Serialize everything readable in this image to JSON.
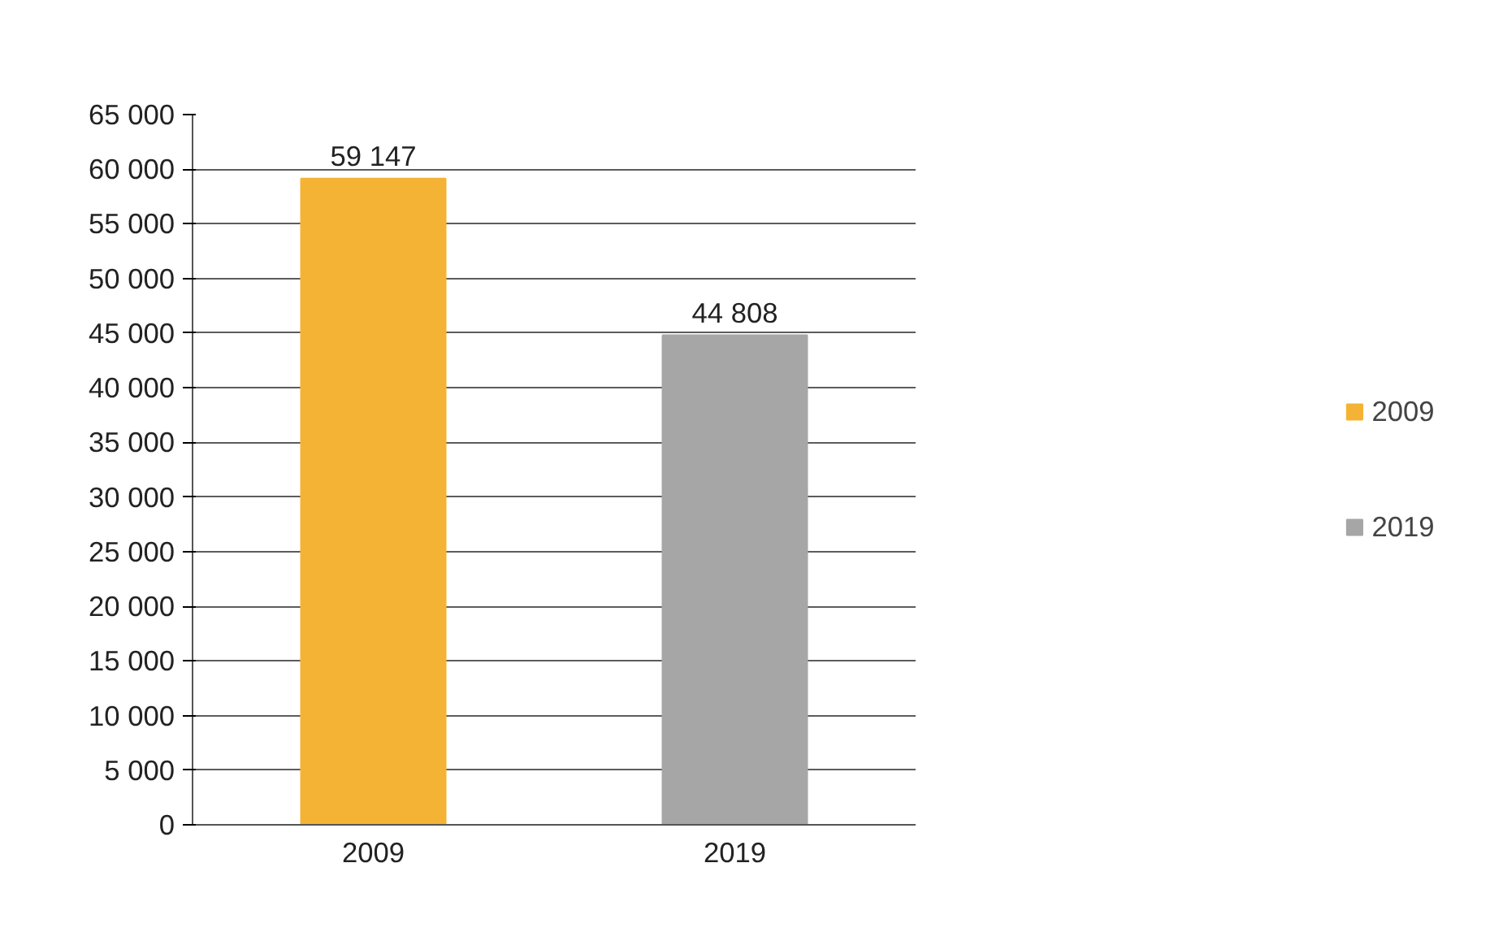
{
  "chart_data": {
    "type": "bar",
    "categories": [
      "2009",
      "2019"
    ],
    "series": [
      {
        "name": "2009",
        "color": "#f5b335",
        "values": [
          59147,
          null
        ],
        "value_labels": [
          "59 147",
          null
        ]
      },
      {
        "name": "2019",
        "color": "#a6a6a6",
        "values": [
          null,
          44808
        ],
        "value_labels": [
          null,
          "44 808"
        ]
      }
    ],
    "ylim": [
      0,
      65000
    ],
    "yticks": [
      0,
      {
        "value": 5000,
        "label": "5 000"
      },
      {
        "value": 10000,
        "label": "10 000"
      },
      {
        "value": 15000,
        "label": "15 000"
      },
      {
        "value": 20000,
        "label": "20 000"
      },
      {
        "value": 25000,
        "label": "25 000"
      },
      {
        "value": 30000,
        "label": "30 000"
      },
      {
        "value": 35000,
        "label": "35 000"
      },
      {
        "value": 40000,
        "label": "40 000"
      },
      {
        "value": 45000,
        "label": "45 000"
      },
      {
        "value": 50000,
        "label": "50 000"
      },
      {
        "value": 55000,
        "label": "55 000"
      },
      {
        "value": 60000,
        "label": "60 000"
      },
      {
        "value": 65000,
        "label": "65 000"
      }
    ],
    "grid": "y",
    "legend": "right"
  }
}
